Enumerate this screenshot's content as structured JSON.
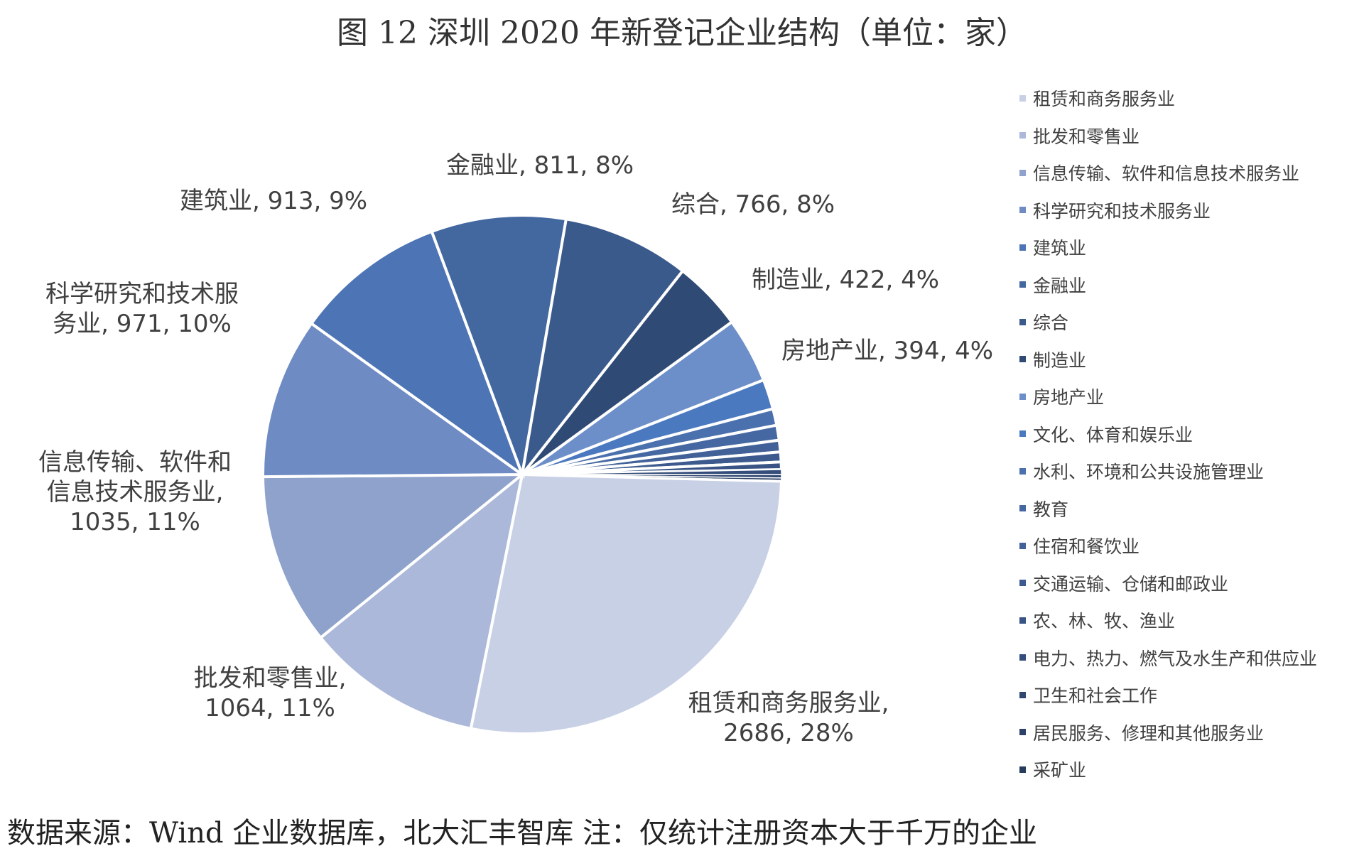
{
  "chart_data": {
    "type": "pie",
    "title": "图 12 深圳 2020 年新登记企业结构（单位：家）",
    "legend_position": "right",
    "slices": [
      {
        "name": "租赁和商务服务业",
        "value": 2686,
        "percent_label": "28%",
        "label_lines": [
          "租赁和商务服务业,",
          "2686, 28%"
        ],
        "color": "#c8d0e6"
      },
      {
        "name": "批发和零售业",
        "value": 1064,
        "percent_label": "11%",
        "label_lines": [
          "批发和零售业,",
          "1064, 11%"
        ],
        "color": "#abb8d9"
      },
      {
        "name": "信息传输、软件和信息技术服务业",
        "value": 1035,
        "percent_label": "11%",
        "label_lines": [
          "信息传输、软件和",
          "信息技术服务业,",
          "1035, 11%"
        ],
        "color": "#8fa2cc"
      },
      {
        "name": "科学研究和技术服务业",
        "value": 971,
        "percent_label": "10%",
        "label_lines": [
          "科学研究和技术服",
          "务业, 971, 10%"
        ],
        "color": "#6e8bc4"
      },
      {
        "name": "建筑业",
        "value": 913,
        "percent_label": "9%",
        "label_lines": [
          "建筑业, 913, 9%"
        ],
        "color": "#4d74b4"
      },
      {
        "name": "金融业",
        "value": 811,
        "percent_label": "8%",
        "label_lines": [
          "金融业, 811, 8%"
        ],
        "color": "#43679f"
      },
      {
        "name": "综合",
        "value": 766,
        "percent_label": "8%",
        "label_lines": [
          "综合, 766, 8%"
        ],
        "color": "#3a5a8c"
      },
      {
        "name": "制造业",
        "value": 422,
        "percent_label": "4%",
        "label_lines": [
          "制造业, 422, 4%"
        ],
        "color": "#2f4a74"
      },
      {
        "name": "房地产业",
        "value": 394,
        "percent_label": "4%",
        "label_lines": [
          "房地产业, 394, 4%"
        ],
        "color": "#6d8fc9"
      },
      {
        "name": "文化、体育和娱乐业",
        "value": 180,
        "label_lines": [],
        "color": "#4a79c0"
      },
      {
        "name": "水利、环境和公共设施管理业",
        "value": 100,
        "label_lines": [],
        "color": "#4a70ad"
      },
      {
        "name": "教育",
        "value": 90,
        "label_lines": [],
        "color": "#4568a2"
      },
      {
        "name": "住宿和餐饮业",
        "value": 70,
        "label_lines": [],
        "color": "#416198"
      },
      {
        "name": "交通运输、仓储和邮政业",
        "value": 60,
        "label_lines": [],
        "color": "#3d5a8e"
      },
      {
        "name": "农、林、牧、渔业",
        "value": 45,
        "label_lines": [],
        "color": "#385384"
      },
      {
        "name": "电力、热力、燃气及水生产和供应业",
        "value": 30,
        "label_lines": [],
        "color": "#344d7a"
      },
      {
        "name": "卫生和社会工作",
        "value": 20,
        "label_lines": [],
        "color": "#304770"
      },
      {
        "name": "居民服务、修理和其他服务业",
        "value": 15,
        "label_lines": [],
        "color": "#2b4166"
      },
      {
        "name": "采矿业",
        "value": 5,
        "label_lines": [],
        "color": "#273b5c"
      }
    ]
  },
  "source_note": "数据来源：Wind 企业数据库，北大汇丰智库 注：仅统计注册资本大于千万的企业"
}
